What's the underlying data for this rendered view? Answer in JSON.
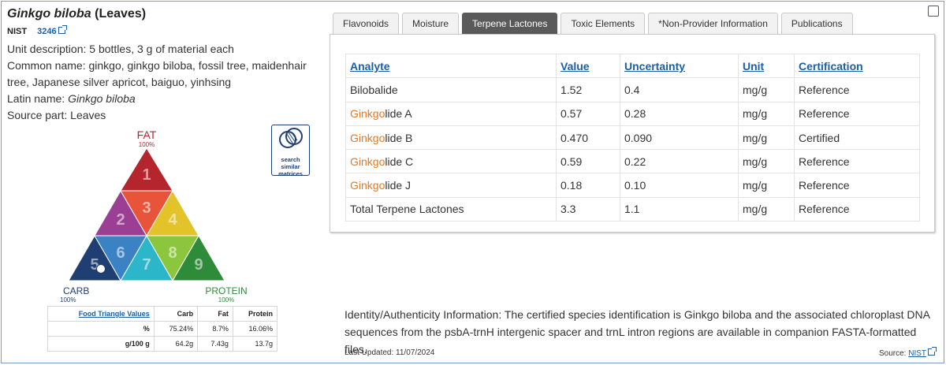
{
  "product": {
    "title_latin": "Ginkgo biloba",
    "title_part": "(Leaves)",
    "org": "NIST",
    "srm_number": "3246",
    "unit_description_label": "Unit description:",
    "unit_description": "5 bottles, 3 g of material each",
    "common_name_label": "Common name:",
    "common_name": "ginkgo, ginkgo biloba, fossil tree, maidenhair tree, Japanese silver apricot, baiguo, yinhsing",
    "latin_name_label": "Latin name:",
    "latin_name": "Ginkgo biloba",
    "source_part_label": "Source part:",
    "source_part": "Leaves"
  },
  "triangle": {
    "fat_label": "FAT",
    "fat_pct": "100%",
    "carb_label": "CARB",
    "carb_pct": "100%",
    "protein_label": "PROTEIN",
    "protein_pct": "100%",
    "cells": [
      "1",
      "2",
      "3",
      "4",
      "5",
      "6",
      "7",
      "8",
      "9"
    ],
    "marker_cell": "5",
    "colors": {
      "fat": "#b5252e",
      "carb": "#1f3f73",
      "protein": "#2e8b3a"
    }
  },
  "similar_matrices": {
    "label_line1": "search",
    "label_line2": "similar",
    "label_line3": "matrices",
    "icon": "venn-icon"
  },
  "food_triangle_values": {
    "headers": [
      "Food Triangle Values",
      "Carb",
      "Fat",
      "Protein"
    ],
    "rows": [
      {
        "label": "%",
        "carb": "75.24%",
        "fat": "8.7%",
        "protein": "16.06%"
      },
      {
        "label": "g/100 g",
        "carb": "64.2g",
        "fat": "7.43g",
        "protein": "13.7g"
      }
    ]
  },
  "tabs": [
    {
      "label": "Flavonoids",
      "active": false
    },
    {
      "label": "Moisture",
      "active": false
    },
    {
      "label": "Terpene Lactones",
      "active": true
    },
    {
      "label": "Toxic Elements",
      "active": false
    },
    {
      "label": "*Non-Provider Information",
      "active": false
    },
    {
      "label": "Publications",
      "active": false
    }
  ],
  "analyte_table": {
    "headers": [
      "Analyte",
      "Value",
      "Uncertainty",
      "Unit",
      "Certification"
    ],
    "rows": [
      {
        "highlight": "",
        "analyte": "Bilobalide",
        "value": "1.52",
        "uncertainty": "0.4",
        "unit": "mg/g",
        "certification": "Reference"
      },
      {
        "highlight": "Ginkgo",
        "analyte": "lide A",
        "value": "0.57",
        "uncertainty": "0.28",
        "unit": "mg/g",
        "certification": "Reference"
      },
      {
        "highlight": "Ginkgo",
        "analyte": "lide B",
        "value": "0.470",
        "uncertainty": "0.090",
        "unit": "mg/g",
        "certification": "Certified"
      },
      {
        "highlight": "Ginkgo",
        "analyte": "lide C",
        "value": "0.59",
        "uncertainty": "0.22",
        "unit": "mg/g",
        "certification": "Reference"
      },
      {
        "highlight": "Ginkgo",
        "analyte": "lide J",
        "value": "0.18",
        "uncertainty": "0.10",
        "unit": "mg/g",
        "certification": "Reference"
      },
      {
        "highlight": "",
        "analyte": "Total Terpene Lactones",
        "value": "3.3",
        "uncertainty": "1.1",
        "unit": "mg/g",
        "certification": "Reference"
      }
    ]
  },
  "identity": "Identity/Authenticity Information: The certified species identification is Ginkgo biloba and the associated chloroplast DNA sequences from the psbA-trnH intergenic spacer and trnL intron regions are available in companion FASTA-formatted files.",
  "footer": {
    "last_updated": "Last Updated: 11/07/2024",
    "source_label": "Source:",
    "source_link": "NIST"
  },
  "accent_colors": {
    "link": "#1a5ea8",
    "highlight": "#e87722",
    "active_tab": "#5a5a5a"
  }
}
